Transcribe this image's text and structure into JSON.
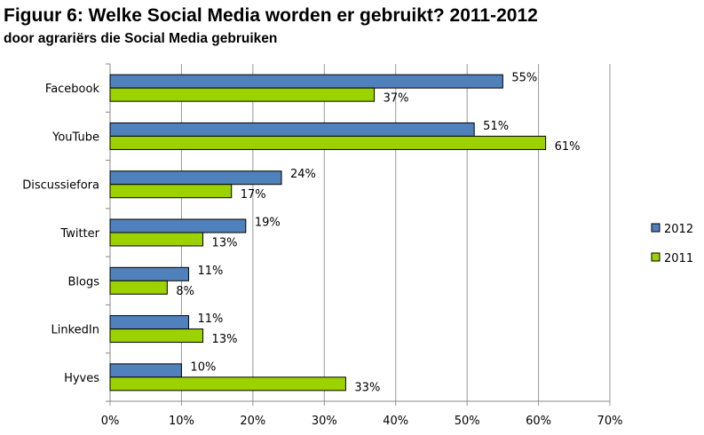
{
  "chart_data": {
    "type": "bar",
    "orientation": "horizontal",
    "title": "Figuur 6: Welke Social Media worden er gebruikt? 2011-2012",
    "subtitle": "door agrariërs die Social Media gebruiken",
    "categories": [
      "Facebook",
      "YouTube",
      "Discussiefora",
      "Twitter",
      "Blogs",
      "LinkedIn",
      "Hyves"
    ],
    "series": [
      {
        "name": "2012",
        "color": "#4f81bd",
        "values": [
          55,
          51,
          24,
          19,
          11,
          11,
          10
        ]
      },
      {
        "name": "2011",
        "color": "#9bd200",
        "values": [
          37,
          61,
          17,
          13,
          8,
          13,
          33
        ]
      }
    ],
    "xlim": [
      0,
      70
    ],
    "xticks": [
      "0%",
      "10%",
      "20%",
      "30%",
      "40%",
      "50%",
      "60%",
      "70%"
    ],
    "grid": true,
    "legend": "right"
  }
}
